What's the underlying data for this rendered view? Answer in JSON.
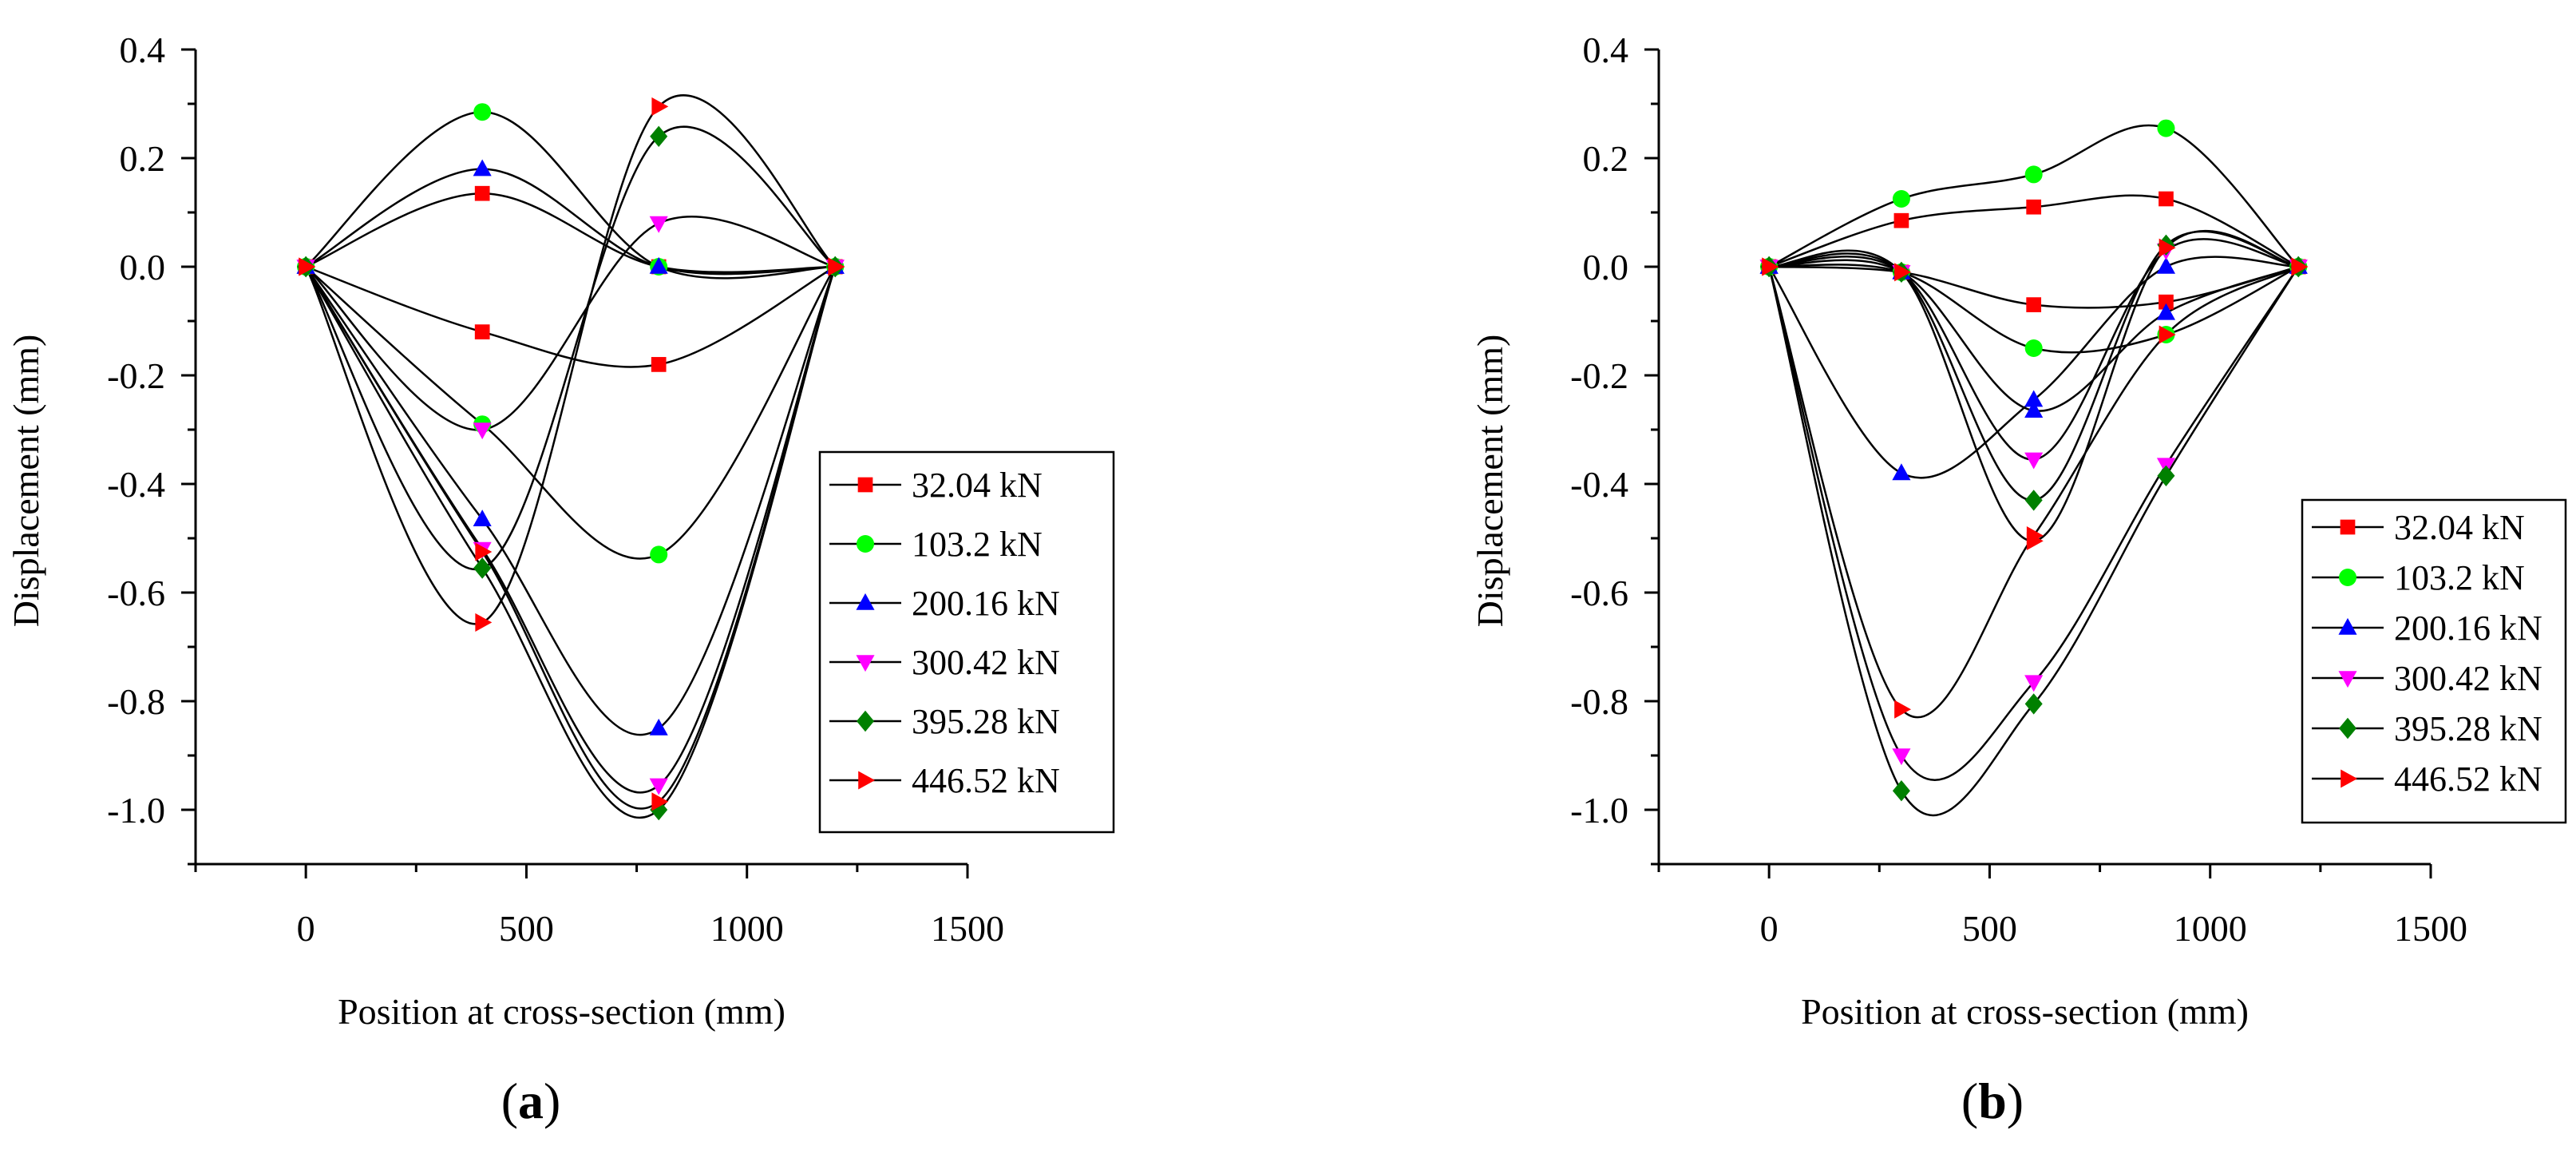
{
  "chart_data": [
    {
      "type": "line",
      "panel_label": "a",
      "xlabel": "Position at cross-section (mm)",
      "ylabel": "Displacement (mm)",
      "xlim": [
        -250,
        1500
      ],
      "ylim": [
        -1.1,
        0.4
      ],
      "xticks": [
        0,
        500,
        1000,
        1500
      ],
      "yticks": [
        0.4,
        0.2,
        0.0,
        -0.2,
        -0.4,
        -0.6,
        -0.8,
        -1.0
      ],
      "ytick_labels": [
        "0.4",
        "0.2",
        "0.0",
        "-0.2",
        "-0.4",
        "-0.6",
        "-0.8",
        "-1.0"
      ],
      "legend_position": "center-right",
      "x": [
        0,
        400,
        800,
        1200
      ],
      "series": [
        {
          "name": "32.04 kN",
          "marker": "square",
          "color": "#ff0000",
          "values": [
            0,
            0.135,
            0.0,
            0
          ]
        },
        {
          "name": "32.04 kN",
          "marker": "square",
          "color": "#ff0000",
          "values": [
            0,
            -0.12,
            -0.18,
            0
          ]
        },
        {
          "name": "103.2 kN",
          "marker": "circle",
          "color": "#00ff00",
          "values": [
            0,
            0.285,
            0.0,
            0
          ]
        },
        {
          "name": "103.2 kN",
          "marker": "circle",
          "color": "#00ff00",
          "values": [
            0,
            -0.29,
            -0.53,
            0
          ]
        },
        {
          "name": "200.16 kN",
          "marker": "triangle-up",
          "color": "#0000ff",
          "values": [
            0,
            0.18,
            0.0,
            0
          ]
        },
        {
          "name": "200.16 kN",
          "marker": "triangle-up",
          "color": "#0000ff",
          "values": [
            0,
            -0.465,
            -0.85,
            0
          ]
        },
        {
          "name": "300.42 kN",
          "marker": "triangle-down",
          "color": "#ff00ff",
          "values": [
            0,
            -0.3,
            0.08,
            0
          ]
        },
        {
          "name": "300.42 kN",
          "marker": "triangle-down",
          "color": "#ff00ff",
          "values": [
            0,
            -0.52,
            -0.955,
            0
          ]
        },
        {
          "name": "395.28 kN",
          "marker": "diamond",
          "color": "#008000",
          "values": [
            0,
            -0.555,
            0.24,
            0
          ]
        },
        {
          "name": "395.28 kN",
          "marker": "diamond",
          "color": "#008000",
          "values": [
            0,
            -0.555,
            -1.0,
            0
          ]
        },
        {
          "name": "446.52 kN",
          "marker": "triangle-right",
          "color": "#ff0000",
          "values": [
            0,
            -0.655,
            0.295,
            0
          ]
        },
        {
          "name": "446.52 kN",
          "marker": "triangle-right",
          "color": "#ff0000",
          "values": [
            0,
            -0.525,
            -0.985,
            0
          ]
        }
      ],
      "legend": [
        "32.04 kN",
        "103.2 kN",
        "200.16 kN",
        "300.42 kN",
        "395.28 kN",
        "446.52 kN"
      ]
    },
    {
      "type": "line",
      "panel_label": "b",
      "xlabel": "Position at cross-section (mm)",
      "ylabel": "Displacement (mm)",
      "xlim": [
        -250,
        1500
      ],
      "ylim": [
        -1.1,
        0.4
      ],
      "xticks": [
        0,
        500,
        1000,
        1500
      ],
      "yticks": [
        0.4,
        0.2,
        0.0,
        -0.2,
        -0.4,
        -0.6,
        -0.8,
        -1.0
      ],
      "ytick_labels": [
        "0.4",
        "0.2",
        "0.0",
        "-0.2",
        "-0.4",
        "-0.6",
        "-0.8",
        "-1.0"
      ],
      "legend_position": "bottom-right",
      "x": [
        0,
        300,
        600,
        900,
        1200
      ],
      "series": [
        {
          "name": "32.04 kN",
          "marker": "square",
          "color": "#ff0000",
          "values": [
            0,
            0.085,
            0.11,
            0.125,
            0
          ]
        },
        {
          "name": "32.04 kN",
          "marker": "square",
          "color": "#ff0000",
          "values": [
            0,
            -0.01,
            -0.07,
            -0.065,
            0
          ]
        },
        {
          "name": "103.2 kN",
          "marker": "circle",
          "color": "#00ff00",
          "values": [
            0,
            0.125,
            0.17,
            0.255,
            0
          ]
        },
        {
          "name": "103.2 kN",
          "marker": "circle",
          "color": "#00ff00",
          "values": [
            0,
            -0.01,
            -0.15,
            -0.125,
            0
          ]
        },
        {
          "name": "200.16 kN",
          "marker": "triangle-up",
          "color": "#0000ff",
          "values": [
            0,
            -0.38,
            -0.245,
            0.0,
            0
          ]
        },
        {
          "name": "200.16 kN",
          "marker": "triangle-up",
          "color": "#0000ff",
          "values": [
            0,
            -0.01,
            -0.265,
            -0.085,
            0
          ]
        },
        {
          "name": "300.42 kN",
          "marker": "triangle-down",
          "color": "#ff00ff",
          "values": [
            0,
            -0.9,
            -0.765,
            -0.365,
            0
          ]
        },
        {
          "name": "300.42 kN",
          "marker": "triangle-down",
          "color": "#ff00ff",
          "values": [
            0,
            -0.01,
            -0.355,
            0.03,
            0
          ]
        },
        {
          "name": "395.28 kN",
          "marker": "diamond",
          "color": "#008000",
          "values": [
            0,
            -0.965,
            -0.805,
            -0.385,
            0
          ]
        },
        {
          "name": "395.28 kN",
          "marker": "diamond",
          "color": "#008000",
          "values": [
            0,
            -0.01,
            -0.43,
            0.04,
            0
          ]
        },
        {
          "name": "446.52 kN",
          "marker": "triangle-right",
          "color": "#ff0000",
          "values": [
            0,
            -0.815,
            -0.495,
            -0.125,
            0
          ]
        },
        {
          "name": "446.52 kN",
          "marker": "triangle-right",
          "color": "#ff0000",
          "values": [
            0,
            -0.01,
            -0.505,
            0.035,
            0
          ]
        }
      ],
      "legend": [
        "32.04 kN",
        "103.2 kN",
        "200.16 kN",
        "300.42 kN",
        "395.28 kN",
        "446.52 kN"
      ]
    }
  ]
}
